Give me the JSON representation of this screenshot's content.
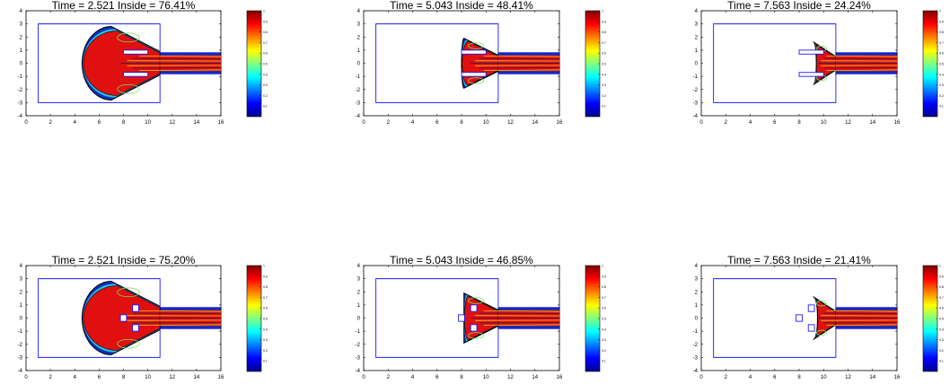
{
  "chart_data": [
    {
      "type": "heatmap",
      "title_prefix_time": "Time =",
      "time": "2.521",
      "title_prefix_inside": "Inside =",
      "inside": "76.41%",
      "xlim": [
        0,
        16
      ],
      "ylim": [
        -4,
        4
      ],
      "x_ticks": [
        "0",
        "2",
        "4",
        "6",
        "8",
        "10",
        "12",
        "14",
        "16"
      ],
      "y_ticks": [
        "4",
        "3",
        "2",
        "1",
        "0",
        "-1",
        "-2",
        "-3",
        "-4"
      ],
      "domain_rect": {
        "x0": 1,
        "x1": 11,
        "y0": -3,
        "y1": 3
      },
      "outlet": {
        "x0": 11,
        "x1": 16,
        "y0": -0.8,
        "y1": 0.8
      },
      "obstacles": [
        {
          "shape": "bar",
          "x0": 8,
          "x1": 10,
          "y0": 0.7,
          "y1": 1.0
        },
        {
          "shape": "bar",
          "x0": 8,
          "x1": 10,
          "y0": -1.0,
          "y1": -0.7
        }
      ],
      "blob": {
        "xmin": 4.6,
        "rx_mid": 2.0,
        "ry": 2.8
      },
      "colorbar": {
        "ticks": [
          "1",
          "0.9",
          "0.8",
          "0.7",
          "0.6",
          "0.5",
          "0.4",
          "0.3",
          "0.2",
          "0.1"
        ],
        "range": [
          0,
          1
        ],
        "colormap": "jet"
      }
    },
    {
      "type": "heatmap",
      "title_prefix_time": "Time =",
      "time": "5.043",
      "title_prefix_inside": "Inside =",
      "inside": "48.41%",
      "xlim": [
        0,
        16
      ],
      "ylim": [
        -4,
        4
      ],
      "x_ticks": [
        "0",
        "2",
        "4",
        "6",
        "8",
        "10",
        "12",
        "14",
        "16"
      ],
      "y_ticks": [
        "4",
        "3",
        "2",
        "1",
        "0",
        "-1",
        "-2",
        "-3",
        "-4"
      ],
      "domain_rect": {
        "x0": 1,
        "x1": 11,
        "y0": -3,
        "y1": 3
      },
      "outlet": {
        "x0": 11,
        "x1": 16,
        "y0": -0.8,
        "y1": 0.8
      },
      "obstacles": [
        {
          "shape": "bar",
          "x0": 8,
          "x1": 10,
          "y0": 0.7,
          "y1": 1.0
        },
        {
          "shape": "bar",
          "x0": 8,
          "x1": 10,
          "y0": -1.0,
          "y1": -0.7
        }
      ],
      "blob": {
        "xmin": 8.0,
        "rx_mid": 1.4,
        "ry": 1.9
      },
      "colorbar": {
        "ticks": [
          "1",
          "0.9",
          "0.8",
          "0.7",
          "0.6",
          "0.5",
          "0.4",
          "0.3",
          "0.2",
          "0.1"
        ],
        "range": [
          0,
          1
        ],
        "colormap": "jet"
      }
    },
    {
      "type": "heatmap",
      "title_prefix_time": "Time =",
      "time": "7.563",
      "title_prefix_inside": "Inside =",
      "inside": "24.24%",
      "xlim": [
        0,
        16
      ],
      "ylim": [
        -4,
        4
      ],
      "x_ticks": [
        "0",
        "2",
        "4",
        "6",
        "8",
        "10",
        "12",
        "14",
        "16"
      ],
      "y_ticks": [
        "4",
        "3",
        "2",
        "1",
        "0",
        "-1",
        "-2",
        "-3",
        "-4"
      ],
      "domain_rect": {
        "x0": 1,
        "x1": 11,
        "y0": -3,
        "y1": 3
      },
      "outlet": {
        "x0": 11,
        "x1": 16,
        "y0": -0.8,
        "y1": 0.8
      },
      "obstacles": [
        {
          "shape": "bar",
          "x0": 8,
          "x1": 10,
          "y0": 0.7,
          "y1": 1.0
        },
        {
          "shape": "bar",
          "x0": 8,
          "x1": 10,
          "y0": -1.0,
          "y1": -0.7
        }
      ],
      "blob": {
        "xmin": 9.4,
        "rx_mid": 0.9,
        "ry": 1.6
      },
      "colorbar": {
        "ticks": [
          "1",
          "0.9",
          "0.8",
          "0.7",
          "0.6",
          "0.5",
          "0.4",
          "0.3",
          "0.2",
          "0.1"
        ],
        "range": [
          0,
          1
        ],
        "colormap": "jet"
      }
    },
    {
      "type": "heatmap",
      "title_prefix_time": "Time =",
      "time": "2.521",
      "title_prefix_inside": "Inside =",
      "inside": "75.20%",
      "xlim": [
        0,
        16
      ],
      "ylim": [
        -4,
        4
      ],
      "x_ticks": [
        "0",
        "2",
        "4",
        "6",
        "8",
        "10",
        "12",
        "14",
        "16"
      ],
      "y_ticks": [
        "4",
        "3",
        "2",
        "1",
        "0",
        "-1",
        "-2",
        "-3",
        "-4"
      ],
      "domain_rect": {
        "x0": 1,
        "x1": 11,
        "y0": -3,
        "y1": 3
      },
      "outlet": {
        "x0": 11,
        "x1": 16,
        "y0": -0.8,
        "y1": 0.8
      },
      "obstacles": [
        {
          "shape": "square",
          "cx": 8.0,
          "cy": 0.0,
          "half": 0.25
        },
        {
          "shape": "square",
          "cx": 9.0,
          "cy": 0.75,
          "half": 0.25
        },
        {
          "shape": "square",
          "cx": 9.0,
          "cy": -0.75,
          "half": 0.25
        }
      ],
      "blob": {
        "xmin": 4.6,
        "rx_mid": 2.0,
        "ry": 2.8
      },
      "colorbar": {
        "ticks": [
          "1",
          "0.9",
          "0.8",
          "0.7",
          "0.6",
          "0.5",
          "0.4",
          "0.3",
          "0.2",
          "0.1"
        ],
        "range": [
          0,
          1
        ],
        "colormap": "jet"
      }
    },
    {
      "type": "heatmap",
      "title_prefix_time": "Time =",
      "time": "5.043",
      "title_prefix_inside": "Inside =",
      "inside": "46.85%",
      "xlim": [
        0,
        16
      ],
      "ylim": [
        -4,
        4
      ],
      "x_ticks": [
        "0",
        "2",
        "4",
        "6",
        "8",
        "10",
        "12",
        "14",
        "16"
      ],
      "y_ticks": [
        "4",
        "3",
        "2",
        "1",
        "0",
        "-1",
        "-2",
        "-3",
        "-4"
      ],
      "domain_rect": {
        "x0": 1,
        "x1": 11,
        "y0": -3,
        "y1": 3
      },
      "outlet": {
        "x0": 11,
        "x1": 16,
        "y0": -0.8,
        "y1": 0.8
      },
      "obstacles": [
        {
          "shape": "square",
          "cx": 8.0,
          "cy": 0.0,
          "half": 0.25
        },
        {
          "shape": "square",
          "cx": 9.0,
          "cy": 0.75,
          "half": 0.25
        },
        {
          "shape": "square",
          "cx": 9.0,
          "cy": -0.75,
          "half": 0.25
        }
      ],
      "blob": {
        "xmin": 8.2,
        "rx_mid": 1.4,
        "ry": 1.9
      },
      "colorbar": {
        "ticks": [
          "1",
          "0.9",
          "0.8",
          "0.7",
          "0.6",
          "0.5",
          "0.4",
          "0.3",
          "0.2",
          "0.1"
        ],
        "range": [
          0,
          1
        ],
        "colormap": "jet"
      }
    },
    {
      "type": "heatmap",
      "title_prefix_time": "Time =",
      "time": "7.563",
      "title_prefix_inside": "Inside =",
      "inside": "21.41%",
      "xlim": [
        0,
        16
      ],
      "ylim": [
        -4,
        4
      ],
      "x_ticks": [
        "0",
        "2",
        "4",
        "6",
        "8",
        "10",
        "12",
        "14",
        "16"
      ],
      "y_ticks": [
        "4",
        "3",
        "2",
        "1",
        "0",
        "-1",
        "-2",
        "-3",
        "-4"
      ],
      "domain_rect": {
        "x0": 1,
        "x1": 11,
        "y0": -3,
        "y1": 3
      },
      "outlet": {
        "x0": 11,
        "x1": 16,
        "y0": -0.8,
        "y1": 0.8
      },
      "obstacles": [
        {
          "shape": "square",
          "cx": 8.0,
          "cy": 0.0,
          "half": 0.25
        },
        {
          "shape": "square",
          "cx": 9.0,
          "cy": 0.75,
          "half": 0.25
        },
        {
          "shape": "square",
          "cx": 9.0,
          "cy": -0.75,
          "half": 0.25
        }
      ],
      "blob": {
        "xmin": 9.5,
        "rx_mid": 0.9,
        "ry": 1.6
      },
      "colorbar": {
        "ticks": [
          "1",
          "0.9",
          "0.8",
          "0.7",
          "0.6",
          "0.5",
          "0.4",
          "0.3",
          "0.2",
          "0.1"
        ],
        "range": [
          0,
          1
        ],
        "colormap": "jet"
      }
    }
  ],
  "colors": {
    "domain_outline": "#1a1aff",
    "axis": "#000000",
    "blob_fill": "#e01010",
    "blob_edge": "#000000",
    "core_yellow": "#f0e020",
    "streak_dark": "#1a1a55",
    "ring_blue": "#1030c0",
    "ring_cyan": "#20c8e0",
    "ring_green": "#80e060"
  }
}
